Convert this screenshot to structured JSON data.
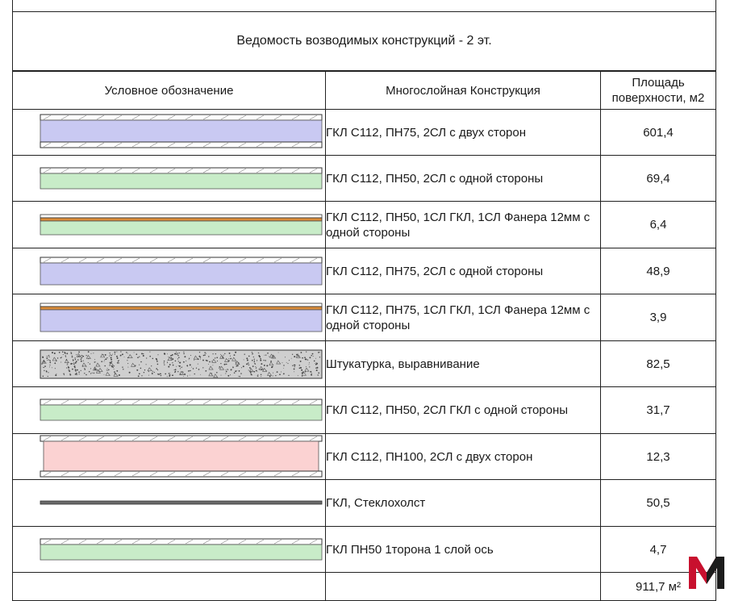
{
  "title": "Ведомость возводимых конструкций - 2 эт.",
  "columns": [
    "Условное обозначение",
    "Многослойная Конструкция",
    "Площадь поверхности, м2"
  ],
  "rows": [
    {
      "symbol": "double-sided-75",
      "construction": "ГКЛ С112, ПН75, 2СЛ с двух сторон",
      "area": "601,4"
    },
    {
      "symbol": "single-sided-50",
      "construction": "ГКЛ С112, ПН50, 2СЛ с одной стороны",
      "area": "69,4"
    },
    {
      "symbol": "plywood-50",
      "construction": "ГКЛ С112, ПН50, 1СЛ ГКЛ, 1СЛ Фанера 12мм с одной стороны",
      "area": "6,4"
    },
    {
      "symbol": "single-sided-75",
      "construction": "ГКЛ С112, ПН75, 2СЛ с одной стороны",
      "area": "48,9"
    },
    {
      "symbol": "plywood-75",
      "construction": "ГКЛ С112, ПН75, 1СЛ ГКЛ, 1СЛ Фанера 12мм с одной стороны",
      "area": "3,9"
    },
    {
      "symbol": "plaster",
      "construction": "Штукатурка, выравнивание",
      "area": "82,5"
    },
    {
      "symbol": "single-sided-50-gkl",
      "construction": "ГКЛ С112, ПН50, 2СЛ ГКЛ с одной стороны",
      "area": "31,7"
    },
    {
      "symbol": "double-sided-100",
      "construction": "ГКЛ С112, ПН100, 2СЛ с двух сторон",
      "area": "12,3"
    },
    {
      "symbol": "fiberglass",
      "construction": "ГКЛ, Стеклохолст",
      "area": "50,5"
    },
    {
      "symbol": "axis-50",
      "construction": "ГКЛ ПН50 1торона 1 слой ось",
      "area": "4,7"
    }
  ],
  "total": "911,7 м²",
  "colors": {
    "blue_fill": "#c9c9f2",
    "green_fill": "#c8ecc8",
    "pink_fill": "#fbd2d2",
    "plywood": "#d98c3a",
    "logo_red": "#c8102e",
    "logo_dark": "#1c1c1c"
  }
}
